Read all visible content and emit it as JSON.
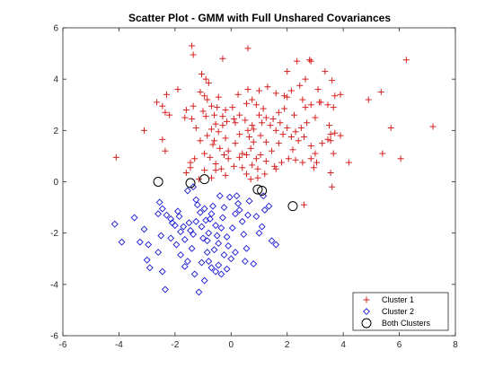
{
  "chart_data": {
    "type": "scatter",
    "title": "Scatter Plot - GMM with Full Unshared Covariances",
    "xlabel": "",
    "ylabel": "",
    "xlim": [
      -6,
      8
    ],
    "ylim": [
      -6,
      6
    ],
    "xticks": [
      -6,
      -4,
      -2,
      0,
      2,
      4,
      6,
      8
    ],
    "yticks": [
      -6,
      -4,
      -2,
      0,
      2,
      4,
      6
    ],
    "grid": false,
    "legend_position": "bottom-right",
    "series": [
      {
        "name": "Cluster 1",
        "marker": "plus",
        "color": "#d62020",
        "points": [
          [
            -1.4,
            5.3
          ],
          [
            -1.35,
            4.95
          ],
          [
            -0.3,
            4.8
          ],
          [
            0.6,
            5.2
          ],
          [
            -1.05,
            4.2
          ],
          [
            -0.9,
            4.0
          ],
          [
            -0.8,
            3.85
          ],
          [
            -1.1,
            3.5
          ],
          [
            -1.9,
            3.6
          ],
          [
            -2.3,
            3.4
          ],
          [
            -2.65,
            3.1
          ],
          [
            -2.45,
            2.95
          ],
          [
            -2.2,
            2.6
          ],
          [
            -2.35,
            2.7
          ],
          [
            -1.65,
            2.5
          ],
          [
            -1.4,
            2.45
          ],
          [
            -0.9,
            2.55
          ],
          [
            -0.95,
            3.35
          ],
          [
            -0.85,
            3.2
          ],
          [
            -0.5,
            2.9
          ],
          [
            -0.2,
            2.8
          ],
          [
            0.1,
            2.45
          ],
          [
            0.15,
            2.3
          ],
          [
            -0.15,
            2.35
          ],
          [
            -0.55,
            2.25
          ],
          [
            -0.3,
            2.2
          ],
          [
            -0.7,
            2.05
          ],
          [
            -0.85,
            1.8
          ],
          [
            -1.1,
            1.6
          ],
          [
            -0.65,
            1.45
          ],
          [
            -0.4,
            1.3
          ],
          [
            -0.95,
            1.1
          ],
          [
            -0.75,
            0.95
          ],
          [
            -1.3,
            0.9
          ],
          [
            -1.45,
            0.75
          ],
          [
            -1.45,
            0.55
          ],
          [
            -1.6,
            0.35
          ],
          [
            -0.95,
            0.45
          ],
          [
            -0.55,
            0.7
          ],
          [
            -0.55,
            0.45
          ],
          [
            -0.35,
            0.5
          ],
          [
            -0.1,
            0.9
          ],
          [
            -0.25,
            1.05
          ],
          [
            -3.1,
            2.0
          ],
          [
            -2.45,
            1.65
          ],
          [
            -2.35,
            1.2
          ],
          [
            -4.1,
            0.95
          ],
          [
            -1.15,
            0.1
          ],
          [
            -0.7,
            0.15
          ],
          [
            -0.2,
            0.25
          ],
          [
            0.1,
            0.6
          ],
          [
            0.3,
            0.95
          ],
          [
            0.55,
            1.05
          ],
          [
            0.7,
            1.3
          ],
          [
            0.8,
            1.55
          ],
          [
            0.65,
            1.75
          ],
          [
            0.6,
            2.0
          ],
          [
            0.75,
            2.2
          ],
          [
            0.5,
            2.4
          ],
          [
            0.3,
            2.6
          ],
          [
            0.55,
            3.05
          ],
          [
            0.75,
            3.2
          ],
          [
            0.6,
            3.6
          ],
          [
            0.25,
            3.4
          ],
          [
            1.0,
            3.55
          ],
          [
            1.3,
            3.7
          ],
          [
            1.6,
            3.45
          ],
          [
            1.9,
            3.35
          ],
          [
            2.0,
            3.3
          ],
          [
            2.15,
            3.55
          ],
          [
            2.0,
            4.3
          ],
          [
            2.35,
            4.7
          ],
          [
            2.8,
            4.75
          ],
          [
            2.85,
            4.7
          ],
          [
            2.65,
            4.0
          ],
          [
            2.45,
            3.75
          ],
          [
            2.55,
            3.2
          ],
          [
            2.85,
            3.0
          ],
          [
            3.15,
            3.1
          ],
          [
            3.45,
            3.0
          ],
          [
            3.65,
            2.9
          ],
          [
            3.7,
            3.35
          ],
          [
            3.9,
            3.4
          ],
          [
            3.6,
            3.95
          ],
          [
            3.35,
            4.3
          ],
          [
            3.1,
            3.6
          ],
          [
            3.0,
            2.5
          ],
          [
            2.7,
            2.3
          ],
          [
            2.5,
            2.1
          ],
          [
            2.3,
            1.95
          ],
          [
            2.0,
            2.1
          ],
          [
            1.75,
            2.3
          ],
          [
            1.5,
            2.45
          ],
          [
            1.25,
            2.5
          ],
          [
            1.1,
            2.3
          ],
          [
            1.4,
            2.2
          ],
          [
            1.6,
            2.0
          ],
          [
            1.85,
            1.85
          ],
          [
            2.15,
            1.75
          ],
          [
            2.4,
            1.6
          ],
          [
            2.6,
            1.75
          ],
          [
            2.85,
            1.4
          ],
          [
            3.25,
            1.5
          ],
          [
            3.45,
            1.65
          ],
          [
            3.55,
            1.85
          ],
          [
            3.7,
            1.9
          ],
          [
            3.9,
            1.8
          ],
          [
            3.5,
            2.2
          ],
          [
            3.0,
            1.1
          ],
          [
            2.85,
            0.9
          ],
          [
            2.55,
            0.75
          ],
          [
            2.3,
            0.85
          ],
          [
            2.05,
            0.9
          ],
          [
            1.8,
            0.75
          ],
          [
            1.55,
            0.6
          ],
          [
            1.25,
            0.8
          ],
          [
            1.05,
            1.05
          ],
          [
            0.9,
            0.9
          ],
          [
            0.75,
            0.65
          ],
          [
            0.95,
            0.5
          ],
          [
            1.2,
            0.3
          ],
          [
            0.95,
            0.15
          ],
          [
            0.7,
            0.1
          ],
          [
            0.55,
            0.3
          ],
          [
            0.4,
            0.55
          ],
          [
            1.45,
            1.2
          ],
          [
            1.25,
            1.55
          ],
          [
            1.05,
            1.8
          ],
          [
            0.8,
            2.05
          ],
          [
            1.0,
            2.6
          ],
          [
            1.15,
            2.85
          ],
          [
            0.9,
            3.0
          ],
          [
            1.7,
            2.7
          ],
          [
            1.9,
            2.85
          ],
          [
            2.25,
            2.6
          ],
          [
            2.65,
            2.9
          ],
          [
            3.2,
            3.1
          ],
          [
            3.55,
            1.6
          ],
          [
            3.65,
            1.1
          ],
          [
            4.2,
            0.75
          ],
          [
            3.6,
            -0.2
          ],
          [
            3.55,
            0.35
          ],
          [
            3.05,
            0.75
          ],
          [
            2.95,
            0.55
          ],
          [
            2.6,
            -0.9
          ],
          [
            4.9,
            3.2
          ],
          [
            5.35,
            3.5
          ],
          [
            5.7,
            2.1
          ],
          [
            5.4,
            1.1
          ],
          [
            6.05,
            0.9
          ],
          [
            6.25,
            4.75
          ],
          [
            7.2,
            2.15
          ],
          [
            -0.45,
            1.95
          ],
          [
            -0.2,
            1.7
          ],
          [
            0.15,
            1.5
          ],
          [
            -0.1,
            1.2
          ],
          [
            0.3,
            1.85
          ],
          [
            -0.6,
            1.6
          ],
          [
            -0.3,
            2.55
          ],
          [
            0.05,
            2.9
          ],
          [
            -1.35,
            2.95
          ],
          [
            -1.0,
            2.75
          ],
          [
            -0.7,
            2.95
          ],
          [
            -0.45,
            3.3
          ],
          [
            -0.6,
            2.6
          ],
          [
            -1.25,
            2.1
          ],
          [
            -1.6,
            2.8
          ],
          [
            0.4,
            1.1
          ],
          [
            1.6,
            0.5
          ],
          [
            2.2,
            1.25
          ],
          [
            1.7,
            1.5
          ]
        ]
      },
      {
        "name": "Cluster 2",
        "marker": "diamond",
        "color": "#1a1ad6",
        "points": [
          [
            -4.15,
            -1.65
          ],
          [
            -3.9,
            -2.35
          ],
          [
            -3.45,
            -1.4
          ],
          [
            -3.1,
            -1.85
          ],
          [
            -3.25,
            -2.35
          ],
          [
            -2.95,
            -2.45
          ],
          [
            -3.0,
            -3.05
          ],
          [
            -2.9,
            -3.35
          ],
          [
            -2.6,
            -2.75
          ],
          [
            -2.55,
            -0.8
          ],
          [
            -2.45,
            -1.05
          ],
          [
            -2.3,
            -1.3
          ],
          [
            -2.1,
            -1.6
          ],
          [
            -2.5,
            -2.1
          ],
          [
            -2.45,
            -3.5
          ],
          [
            -2.35,
            -4.2
          ],
          [
            -2.0,
            -1.7
          ],
          [
            -1.9,
            -1.15
          ],
          [
            -1.85,
            -1.35
          ],
          [
            -1.8,
            -1.95
          ],
          [
            -1.7,
            -1.75
          ],
          [
            -1.65,
            -2.25
          ],
          [
            -1.5,
            -1.6
          ],
          [
            -1.45,
            -1.9
          ],
          [
            -1.4,
            -2.6
          ],
          [
            -1.35,
            -2.05
          ],
          [
            -1.25,
            -1.55
          ],
          [
            -1.2,
            -0.9
          ],
          [
            -1.1,
            -1.2
          ],
          [
            -1.05,
            -1.75
          ],
          [
            -0.95,
            -1.05
          ],
          [
            -0.9,
            -1.5
          ],
          [
            -0.85,
            -2.3
          ],
          [
            -0.8,
            -2.0
          ],
          [
            -0.75,
            -1.45
          ],
          [
            -0.7,
            -1.25
          ],
          [
            -0.65,
            -0.95
          ],
          [
            -0.55,
            -1.7
          ],
          [
            -0.5,
            -2.1
          ],
          [
            -0.45,
            -2.4
          ],
          [
            -0.35,
            -1.8
          ],
          [
            -0.3,
            -1.4
          ],
          [
            -0.25,
            -1.0
          ],
          [
            -0.15,
            -2.15
          ],
          [
            -0.1,
            -2.5
          ],
          [
            0.05,
            -1.8
          ],
          [
            0.15,
            -1.25
          ],
          [
            0.2,
            -0.55
          ],
          [
            0.25,
            -0.85
          ],
          [
            0.3,
            -1.1
          ],
          [
            0.4,
            -1.55
          ],
          [
            0.45,
            -2.05
          ],
          [
            0.55,
            -2.6
          ],
          [
            0.6,
            -1.3
          ],
          [
            0.65,
            -0.75
          ],
          [
            -1.95,
            -2.45
          ],
          [
            -1.8,
            -2.85
          ],
          [
            -1.65,
            -3.3
          ],
          [
            -1.55,
            -3.1
          ],
          [
            -1.3,
            -3.6
          ],
          [
            -1.15,
            -4.3
          ],
          [
            -1.05,
            -3.15
          ],
          [
            -0.95,
            -3.85
          ],
          [
            -0.85,
            -2.75
          ],
          [
            -0.8,
            -3.1
          ],
          [
            -0.7,
            -3.35
          ],
          [
            -0.55,
            -3.5
          ],
          [
            -0.45,
            -3.25
          ],
          [
            -0.35,
            -3.6
          ],
          [
            -0.25,
            -2.85
          ],
          [
            -0.15,
            -3.4
          ],
          [
            0.0,
            -3.0
          ],
          [
            0.15,
            -2.75
          ],
          [
            0.5,
            -3.1
          ],
          [
            0.8,
            -3.2
          ],
          [
            1.0,
            -2.0
          ],
          [
            1.1,
            -1.75
          ],
          [
            1.2,
            -1.1
          ],
          [
            1.35,
            -0.95
          ],
          [
            1.15,
            -0.55
          ],
          [
            1.45,
            -2.3
          ],
          [
            1.6,
            -2.45
          ],
          [
            0.9,
            -1.35
          ],
          [
            -2.15,
            -1.45
          ],
          [
            -1.55,
            -0.35
          ],
          [
            -1.35,
            -0.2
          ],
          [
            -1.25,
            -0.7
          ],
          [
            -0.4,
            -0.55
          ],
          [
            -0.05,
            -0.6
          ],
          [
            -2.6,
            -1.25
          ],
          [
            -0.6,
            -2.65
          ],
          [
            -1.0,
            -2.2
          ],
          [
            -2.15,
            -2.2
          ]
        ]
      },
      {
        "name": "Both Clusters",
        "marker": "circle",
        "color": "#000000",
        "points": [
          [
            -2.6,
            0.0
          ],
          [
            -1.45,
            -0.05
          ],
          [
            -0.95,
            0.1
          ],
          [
            0.95,
            -0.3
          ],
          [
            1.1,
            -0.35
          ],
          [
            2.2,
            -0.95
          ]
        ]
      }
    ]
  }
}
